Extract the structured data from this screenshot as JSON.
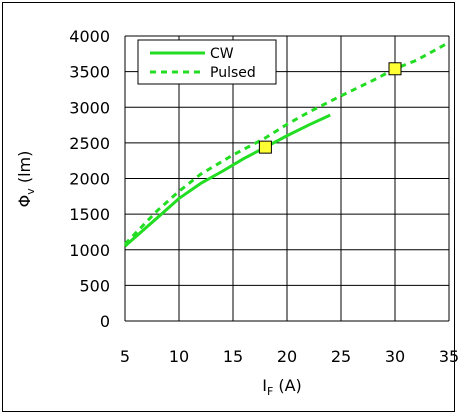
{
  "chart_data": {
    "type": "line",
    "xlabel": "I",
    "xlabel_sub": "F",
    "xlabel_unit": " (A)",
    "ylabel": "Φ",
    "ylabel_sub": "v",
    "ylabel_unit": " (lm)",
    "xlim": [
      5,
      35
    ],
    "ylim": [
      0,
      4000
    ],
    "x_ticks": [
      5,
      10,
      15,
      20,
      25,
      30,
      35
    ],
    "y_ticks": [
      0,
      500,
      1000,
      1500,
      2000,
      2500,
      3000,
      3500,
      4000
    ],
    "grid": true,
    "legend_position": "top-left",
    "series": [
      {
        "name": "CW",
        "style": "solid",
        "color": "#22dd22",
        "x": [
          5,
          8,
          10,
          12,
          14,
          16,
          18,
          20,
          22,
          24
        ],
        "y": [
          1050,
          1450,
          1720,
          1930,
          2100,
          2280,
          2440,
          2600,
          2750,
          2890
        ]
      },
      {
        "name": "Pulsed",
        "style": "dashed",
        "color": "#22dd22",
        "x": [
          5,
          8,
          10,
          12,
          15,
          18,
          20,
          22,
          25,
          28,
          30,
          32,
          35
        ],
        "y": [
          1080,
          1550,
          1820,
          2060,
          2330,
          2570,
          2760,
          2930,
          3160,
          3380,
          3540,
          3660,
          3910
        ]
      }
    ],
    "markers": [
      {
        "x": 18,
        "y": 2440,
        "color": "#ffff33"
      },
      {
        "x": 30,
        "y": 3540,
        "color": "#ffff33"
      }
    ]
  }
}
